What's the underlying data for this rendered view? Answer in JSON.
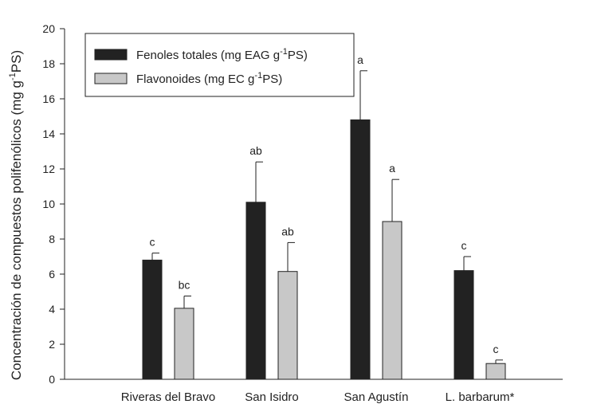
{
  "chart_data": {
    "type": "bar",
    "categories": [
      "Riveras del Bravo",
      "San Isidro",
      "San Agustín",
      "L. barbarum*"
    ],
    "series": [
      {
        "name_prefix": "Fenoles totales (mg EAG g",
        "name_sup": "-1",
        "name_suffix": "PS)",
        "values": [
          6.8,
          10.1,
          14.8,
          6.2
        ],
        "errors": [
          0.4,
          2.3,
          2.8,
          0.8
        ],
        "labels": [
          "c",
          "ab",
          "a",
          "c"
        ],
        "color": "#222222"
      },
      {
        "name_prefix": "Flavonoides (mg EC g",
        "name_sup": "-1",
        "name_suffix": "PS)",
        "values": [
          4.05,
          6.15,
          9.0,
          0.9
        ],
        "errors": [
          0.7,
          1.65,
          2.4,
          0.2
        ],
        "labels": [
          "bc",
          "ab",
          "a",
          "c"
        ],
        "color": "#c8c8c8"
      }
    ],
    "ylabel_prefix": "Concentración de compuestos polifenólicos (mg g",
    "ylabel_sup": "-1",
    "ylabel_suffix": "PS)",
    "ylim": [
      0,
      20
    ],
    "yticks": [
      0,
      2,
      4,
      6,
      8,
      10,
      12,
      14,
      16,
      18,
      20
    ],
    "legend_position": "top-left",
    "grid": false
  }
}
